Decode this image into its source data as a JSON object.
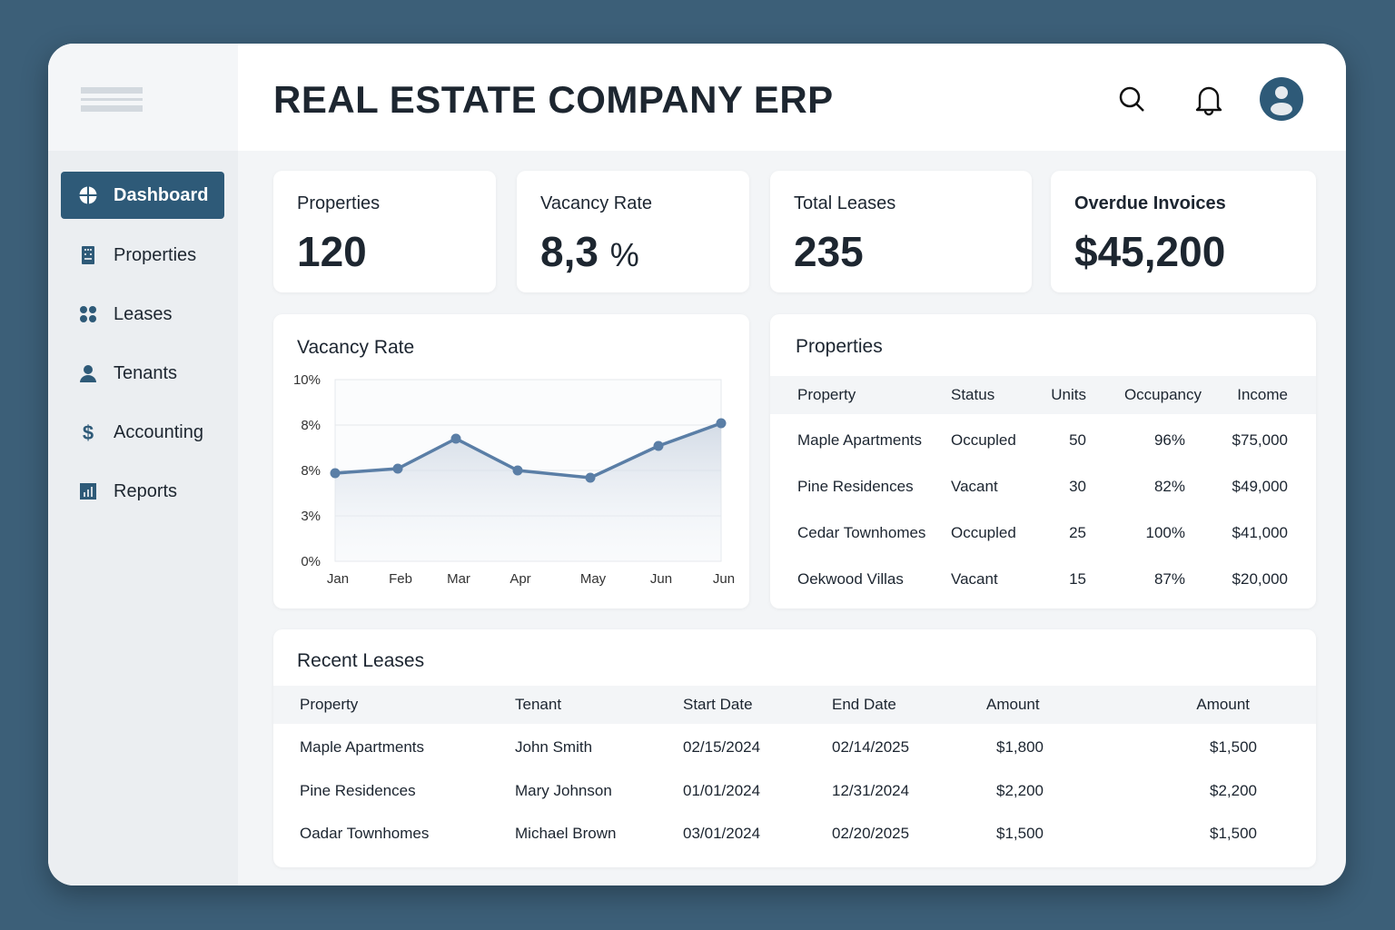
{
  "header": {
    "title": "REAL ESTATE COMPANY ERP"
  },
  "sidebar": {
    "items": [
      {
        "label": "Dashboard",
        "icon": "dashboard-icon",
        "active": true
      },
      {
        "label": "Properties",
        "icon": "building-icon"
      },
      {
        "label": "Leases",
        "icon": "grid-dots-icon"
      },
      {
        "label": "Tenants",
        "icon": "user-icon"
      },
      {
        "label": "Accounting",
        "icon": "dollar-icon"
      },
      {
        "label": "Reports",
        "icon": "bar-chart-icon"
      }
    ]
  },
  "stats": [
    {
      "label": "Properties",
      "value": "120"
    },
    {
      "label": "Vacancy Rate",
      "value": "8,3",
      "unit": "%"
    },
    {
      "label": "Total Leases",
      "value": "235"
    },
    {
      "label": "Overdue Invoices",
      "value": "$45,200"
    }
  ],
  "chart_data": {
    "type": "line",
    "title": "Vacancy Rate",
    "categories": [
      "Jan",
      "Feb",
      "Mar",
      "Apr",
      "May",
      "Jun",
      "Jun"
    ],
    "values": [
      4.85,
      5.1,
      6.75,
      5.0,
      4.6,
      6.35,
      7.6
    ],
    "ytick_labels": [
      "0%",
      "3%",
      "8%",
      "8%",
      "10%"
    ],
    "ylim": [
      0,
      10
    ],
    "grid": true,
    "color": "#5a7ea6"
  },
  "properties": {
    "title": "Properties",
    "columns": [
      "Property",
      "Status",
      "Units",
      "Occupancy",
      "Income"
    ],
    "rows": [
      [
        "Maple Apartments",
        "Occupled",
        "50",
        "96%",
        "$75,000"
      ],
      [
        "Pine Residences",
        "Vacant",
        "30",
        "82%",
        "$49,000"
      ],
      [
        "Cedar Townhomes",
        "Occupled",
        "25",
        "100%",
        "$41,000"
      ],
      [
        "Oekwood Villas",
        "Vacant",
        "15",
        "87%",
        "$20,000"
      ]
    ]
  },
  "leases": {
    "title": "Recent Leases",
    "columns": [
      "Property",
      "Tenant",
      "Start Date",
      "End Date",
      "Amount",
      "Amount"
    ],
    "rows": [
      [
        "Maple Apartments",
        "John Smith",
        "02/15/2024",
        "02/14/2025",
        "$1,800",
        "$1,500"
      ],
      [
        "Pine Residences",
        "Mary Johnson",
        "01/01/2024",
        "12/31/2024",
        "$2,200",
        "$2,200"
      ],
      [
        "Oadar Townhomes",
        "Michael Brown",
        "03/01/2024",
        "02/20/2025",
        "$1,500",
        "$1,500"
      ]
    ]
  },
  "colors": {
    "accent": "#2e5a78",
    "background": "#3c5f78"
  }
}
